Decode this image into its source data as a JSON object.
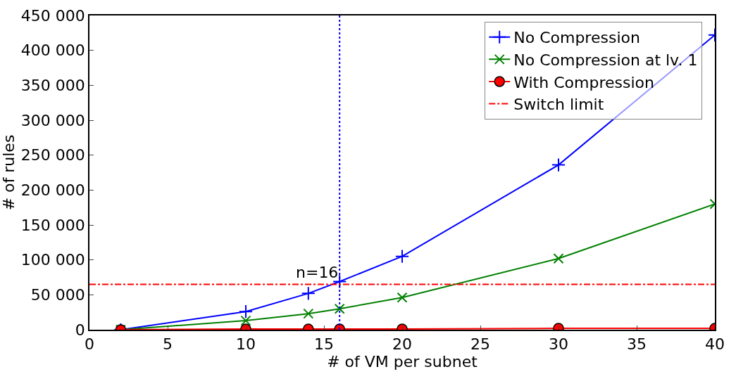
{
  "chart_data": {
    "type": "line",
    "xlabel": "# of VM per subnet",
    "ylabel": "# of rules",
    "x": [
      2,
      10,
      14,
      16,
      20,
      30,
      40
    ],
    "series": [
      {
        "name": "No Compression",
        "color": "#0000ff",
        "marker": "cross",
        "values": [
          0,
          26000,
          52000,
          69000,
          105000,
          236000,
          422000
        ]
      },
      {
        "name": "No Compression at lv. 1",
        "color": "#008000",
        "marker": "x",
        "values": [
          0,
          13000,
          23000,
          30000,
          46000,
          102000,
          180000
        ]
      },
      {
        "name": "With Compression",
        "color": "#ff0000",
        "marker": "circle",
        "values": [
          0,
          1000,
          1000,
          1000,
          1000,
          2000,
          2000
        ]
      }
    ],
    "ref_lines": [
      {
        "axis": "y",
        "value": 65000,
        "label": "Switch limit",
        "color": "#ff0000",
        "line_style": "dashdot"
      },
      {
        "axis": "x",
        "value": 16,
        "label": null,
        "color": "#0000ff",
        "line_style": "dotted"
      }
    ],
    "annotations": [
      {
        "text": "n=16",
        "x": 16,
        "y": 65000
      }
    ],
    "xlim": [
      0,
      40
    ],
    "xticks": [
      0,
      5,
      10,
      15,
      20,
      25,
      30,
      35,
      40
    ],
    "ylim": [
      0,
      450000
    ],
    "yticks": [
      {
        "value": 0,
        "label": "0"
      },
      {
        "value": 50000,
        "label": "50 000"
      },
      {
        "value": 100000,
        "label": "100 000"
      },
      {
        "value": 150000,
        "label": "150 000"
      },
      {
        "value": 200000,
        "label": "200 000"
      },
      {
        "value": 250000,
        "label": "250 000"
      },
      {
        "value": 300000,
        "label": "300 000"
      },
      {
        "value": 350000,
        "label": "350 000"
      },
      {
        "value": 400000,
        "label": "400 000"
      },
      {
        "value": 450000,
        "label": "450 000"
      }
    ],
    "legend": "top right",
    "line_style": "solid"
  }
}
